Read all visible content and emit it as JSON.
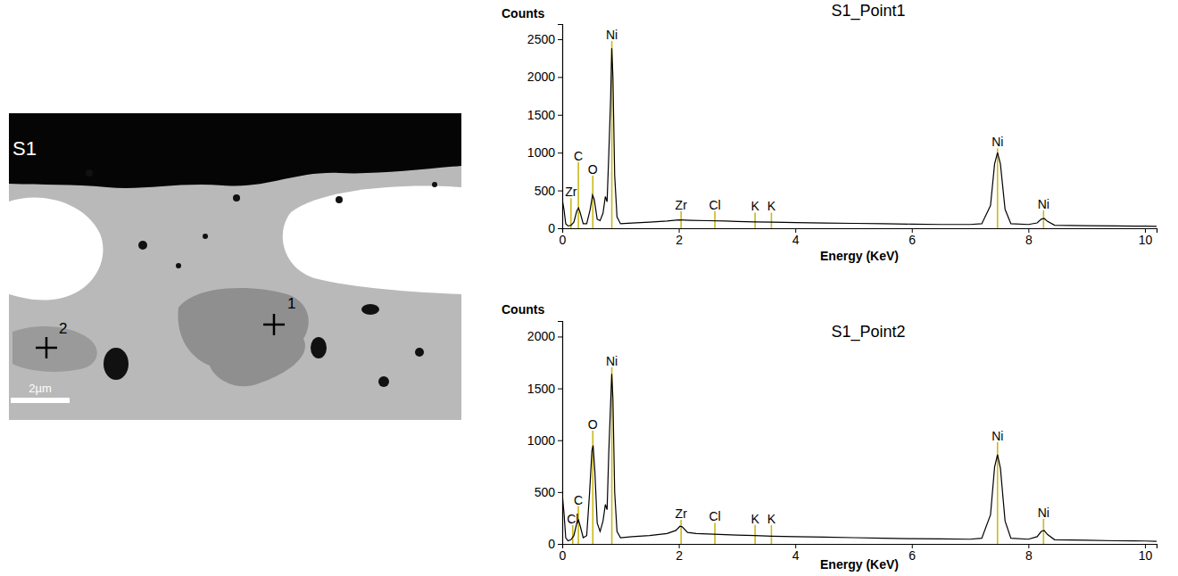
{
  "image": {
    "label": "S1",
    "point_labels": [
      "1",
      "2"
    ],
    "scale_bar": "2µm"
  },
  "chart_data": [
    {
      "type": "line",
      "title": "S1_Point1",
      "y_label": "Counts",
      "x_label": "Energy (KeV)",
      "color": "#000000",
      "xlim": [
        0,
        10.2
      ],
      "xticks": [
        0,
        2,
        4,
        6,
        8,
        10
      ],
      "ylim": [
        0,
        2700
      ],
      "yticks": [
        0,
        500,
        1000,
        1500,
        2000,
        2500
      ],
      "x": [
        0,
        0.03,
        0.06,
        0.1,
        0.15,
        0.2,
        0.25,
        0.28,
        0.31,
        0.36,
        0.42,
        0.48,
        0.52,
        0.55,
        0.6,
        0.65,
        0.7,
        0.74,
        0.77,
        0.8,
        0.83,
        0.85,
        0.87,
        0.9,
        0.94,
        1.0,
        1.2,
        1.5,
        1.8,
        2.0,
        2.2,
        2.5,
        2.8,
        3.0,
        3.3,
        3.6,
        4.0,
        4.5,
        5.0,
        5.5,
        6.0,
        6.5,
        7.0,
        7.2,
        7.35,
        7.42,
        7.47,
        7.52,
        7.6,
        7.7,
        8.0,
        8.15,
        8.22,
        8.27,
        8.33,
        8.45,
        9.0,
        9.5,
        10.0,
        10.2
      ],
      "values": [
        380,
        250,
        60,
        30,
        40,
        80,
        230,
        270,
        200,
        60,
        60,
        250,
        440,
        380,
        120,
        100,
        200,
        420,
        350,
        1000,
        1700,
        2380,
        2000,
        700,
        150,
        60,
        70,
        80,
        95,
        110,
        105,
        100,
        95,
        90,
        85,
        80,
        75,
        70,
        65,
        60,
        55,
        50,
        50,
        60,
        300,
        850,
        1000,
        850,
        250,
        60,
        50,
        70,
        120,
        130,
        90,
        40,
        35,
        30,
        28,
        25
      ],
      "annotations": [
        {
          "text": "Zr",
          "x": 0.15,
          "y": 420
        },
        {
          "text": "C",
          "x": 0.277,
          "y": 900
        },
        {
          "text": "O",
          "x": 0.525,
          "y": 720
        },
        {
          "text": "Ni",
          "x": 0.851,
          "y": 2500
        },
        {
          "text": "Zr",
          "x": 2.04,
          "y": 250
        },
        {
          "text": "Cl",
          "x": 2.62,
          "y": 250
        },
        {
          "text": "K",
          "x": 3.31,
          "y": 230
        },
        {
          "text": "K",
          "x": 3.59,
          "y": 230
        },
        {
          "text": "Ni",
          "x": 7.47,
          "y": 1080
        },
        {
          "text": "Ni",
          "x": 8.26,
          "y": 260
        }
      ]
    },
    {
      "type": "line",
      "title": "S1_Point2",
      "y_label": "Counts",
      "x_label": "Energy (KeV)",
      "color": "#000000",
      "xlim": [
        0,
        10.2
      ],
      "xticks": [
        0,
        2,
        4,
        6,
        8,
        10
      ],
      "ylim": [
        0,
        2150
      ],
      "yticks": [
        0,
        500,
        1000,
        1500,
        2000
      ],
      "x": [
        0,
        0.03,
        0.06,
        0.1,
        0.15,
        0.2,
        0.25,
        0.28,
        0.31,
        0.36,
        0.42,
        0.47,
        0.51,
        0.53,
        0.56,
        0.6,
        0.65,
        0.7,
        0.74,
        0.77,
        0.8,
        0.83,
        0.85,
        0.87,
        0.9,
        0.94,
        1.0,
        1.2,
        1.5,
        1.8,
        1.95,
        2.02,
        2.06,
        2.15,
        2.3,
        2.5,
        2.8,
        3.0,
        3.3,
        3.6,
        4.0,
        4.5,
        5.0,
        5.5,
        6.0,
        6.5,
        7.0,
        7.2,
        7.35,
        7.42,
        7.47,
        7.52,
        7.6,
        7.7,
        8.0,
        8.15,
        8.22,
        8.27,
        8.33,
        8.45,
        9.0,
        9.5,
        10.0,
        10.2
      ],
      "values": [
        480,
        300,
        60,
        30,
        40,
        80,
        200,
        230,
        170,
        60,
        80,
        500,
        900,
        950,
        700,
        200,
        120,
        220,
        380,
        330,
        900,
        1350,
        1640,
        1400,
        500,
        120,
        60,
        70,
        80,
        100,
        130,
        170,
        165,
        110,
        100,
        95,
        90,
        85,
        80,
        75,
        70,
        65,
        60,
        55,
        50,
        48,
        45,
        55,
        280,
        740,
        860,
        730,
        220,
        55,
        45,
        70,
        120,
        130,
        90,
        40,
        35,
        30,
        28,
        25
      ],
      "annotations": [
        {
          "text": "Cl",
          "x": 0.18,
          "y": 200
        },
        {
          "text": "C",
          "x": 0.277,
          "y": 380
        },
        {
          "text": "O",
          "x": 0.525,
          "y": 1110
        },
        {
          "text": "Ni",
          "x": 0.851,
          "y": 1720
        },
        {
          "text": "Zr",
          "x": 2.04,
          "y": 250
        },
        {
          "text": "Cl",
          "x": 2.62,
          "y": 220
        },
        {
          "text": "K",
          "x": 3.31,
          "y": 200
        },
        {
          "text": "K",
          "x": 3.59,
          "y": 200
        },
        {
          "text": "Ni",
          "x": 7.47,
          "y": 1000
        },
        {
          "text": "Ni",
          "x": 8.26,
          "y": 260
        }
      ]
    }
  ]
}
